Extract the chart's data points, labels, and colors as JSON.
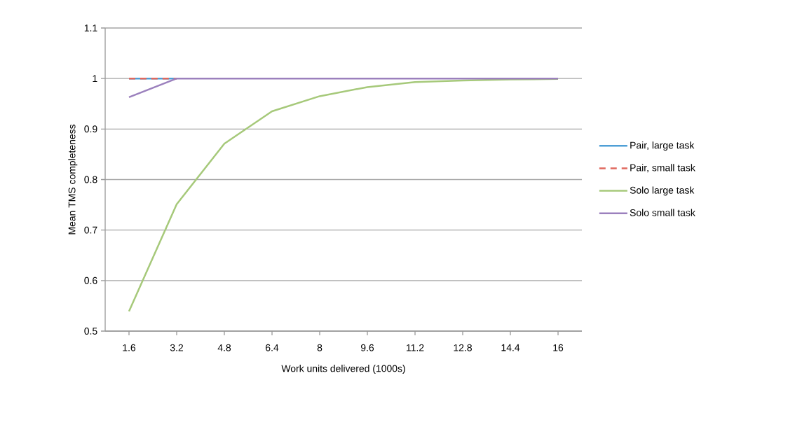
{
  "chart_data": {
    "type": "line",
    "xlabel": "Work units delivered (1000s)",
    "ylabel": "Mean TMS completeness",
    "categories": [
      "1.6",
      "3.2",
      "4.8",
      "6.4",
      "8",
      "9.6",
      "11.2",
      "12.8",
      "14.4",
      "16"
    ],
    "ylim": [
      0.5,
      1.1
    ],
    "yticks": [
      0.5,
      0.6,
      0.7,
      0.8,
      0.9,
      1,
      1.1
    ],
    "grid": "y",
    "legend": "right",
    "marker": "none",
    "series": [
      {
        "name": "Pair, large task",
        "color": "#4f9fd6",
        "line_style": "solid",
        "values": [
          1,
          1,
          null,
          null,
          null,
          null,
          null,
          null,
          null,
          null
        ]
      },
      {
        "name": "Pair, small task",
        "color": "#e0685e",
        "line_style": "dashed",
        "values": [
          1,
          1,
          null,
          null,
          null,
          null,
          null,
          null,
          null,
          null
        ]
      },
      {
        "name": "Solo large task",
        "color": "#a6c97a",
        "line_style": "solid",
        "values": [
          0.539,
          0.751,
          0.871,
          0.935,
          0.965,
          0.983,
          0.993,
          0.996,
          0.998,
          0.999
        ]
      },
      {
        "name": "Solo small task",
        "color": "#9b80bd",
        "line_style": "solid",
        "values": [
          0.963,
          1,
          1,
          1,
          1,
          1,
          1,
          1,
          1,
          1
        ]
      }
    ]
  }
}
